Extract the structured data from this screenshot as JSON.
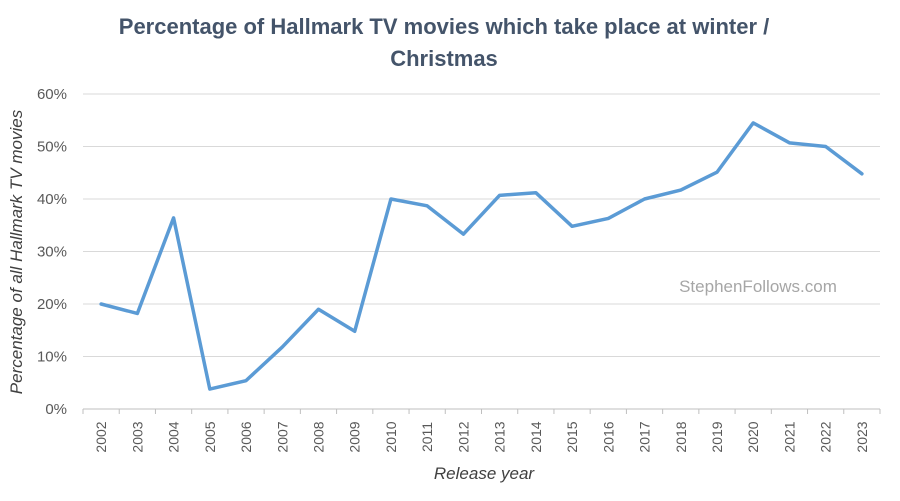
{
  "chart_data": {
    "type": "line",
    "title_lines": [
      "Percentage of Hallmark TV movies which take place at winter /",
      "Christmas"
    ],
    "xlabel": "Release year",
    "ylabel": "Percentage of all Hallmark TV movies",
    "categories": [
      "2002",
      "2003",
      "2004",
      "2005",
      "2006",
      "2007",
      "2008",
      "2009",
      "2010",
      "2011",
      "2012",
      "2013",
      "2014",
      "2015",
      "2016",
      "2017",
      "2018",
      "2019",
      "2020",
      "2021",
      "2022",
      "2023"
    ],
    "y_ticks": [
      "0%",
      "10%",
      "20%",
      "30%",
      "40%",
      "50%",
      "60%"
    ],
    "ylim": [
      0,
      60
    ],
    "grid": true,
    "series": [
      {
        "color": "#5b9bd5",
        "values": [
          20.0,
          18.2,
          36.4,
          3.8,
          5.4,
          11.8,
          19.0,
          14.8,
          40.0,
          38.7,
          33.3,
          40.7,
          41.2,
          34.8,
          36.3,
          40.0,
          41.7,
          45.1,
          54.5,
          50.7,
          50.0,
          44.8
        ]
      }
    ]
  },
  "watermark": "StephenFollows.com"
}
